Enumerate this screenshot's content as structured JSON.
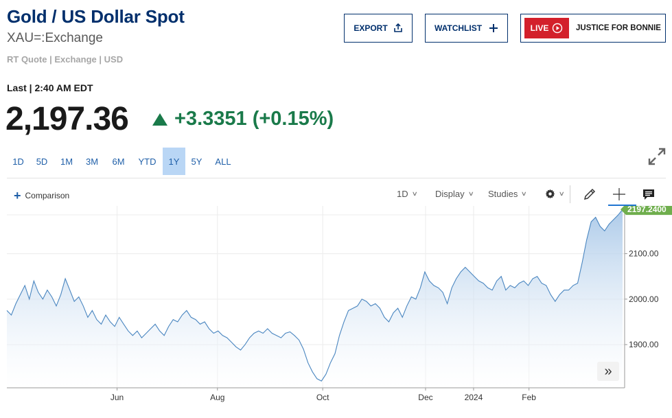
{
  "header": {
    "title": "Gold / US Dollar Spot",
    "symbol": "XAU=:Exchange",
    "quote_source": "RT Quote | Exchange | USD"
  },
  "actions": {
    "export_label": "EXPORT",
    "export_icon": "share-icon",
    "watchlist_label": "WATCHLIST",
    "watchlist_icon": "plus-icon",
    "live_badge": "LIVE",
    "live_icon": "play-circle-icon",
    "live_label": "JUSTICE FOR BONNIE"
  },
  "quote": {
    "last_label": "Last | 2:40 AM EDT",
    "price": "2,197.36",
    "change": "+3.3351 (+0.15%)",
    "direction": "up",
    "change_color": "#1a7a4a"
  },
  "ranges": {
    "items": [
      "1D",
      "5D",
      "1M",
      "3M",
      "6M",
      "YTD",
      "1Y",
      "5Y",
      "ALL"
    ],
    "active": "1Y"
  },
  "toolbar": {
    "comparison_label": "Comparison",
    "interval_label": "1D",
    "display_label": "Display",
    "studies_label": "Studies",
    "settings_icon": "gear-icon",
    "draw_icon": "pencil-icon",
    "crosshair_icon": "crosshair-icon",
    "comments_icon": "comment-icon",
    "expand_icon": "expand-icon",
    "scroll_icon": "double-chevron-right-icon"
  },
  "chart_data": {
    "type": "area",
    "title": "",
    "xlabel": "",
    "ylabel": "",
    "x_ticks": [
      "Jun",
      "Aug",
      "Oct",
      "Dec",
      "2024",
      "Feb"
    ],
    "y_ticks": [
      1900.0,
      2000.0,
      2100.0
    ],
    "y_tick_labels": [
      "1900.00",
      "2000.00",
      "2100.00"
    ],
    "ylim": [
      1805,
      2205
    ],
    "last_value_label": "2197.2400",
    "last_value": 2197.24,
    "line_color": "#4a86c0",
    "fill_color": "#b3cfea",
    "tag_color": "#6fae4d",
    "grid": true,
    "series": [
      {
        "values": [
          1975,
          1965,
          1990,
          2010,
          2030,
          2000,
          2040,
          2015,
          2000,
          2020,
          2005,
          1985,
          2010,
          2045,
          2020,
          1995,
          2005,
          1985,
          1960,
          1975,
          1955,
          1945,
          1965,
          1950,
          1940,
          1960,
          1945,
          1930,
          1920,
          1930,
          1915,
          1925,
          1935,
          1945,
          1930,
          1920,
          1940,
          1955,
          1950,
          1965,
          1975,
          1960,
          1955,
          1945,
          1950,
          1935,
          1925,
          1930,
          1920,
          1915,
          1905,
          1895,
          1888,
          1900,
          1915,
          1925,
          1930,
          1925,
          1935,
          1925,
          1920,
          1915,
          1925,
          1928,
          1920,
          1910,
          1890,
          1860,
          1840,
          1825,
          1820,
          1835,
          1860,
          1880,
          1920,
          1950,
          1975,
          1980,
          1985,
          2000,
          1995,
          1985,
          1990,
          1980,
          1960,
          1950,
          1970,
          1980,
          1960,
          1985,
          2005,
          2000,
          2025,
          2060,
          2040,
          2030,
          2025,
          2015,
          1990,
          2025,
          2045,
          2060,
          2070,
          2060,
          2050,
          2040,
          2035,
          2025,
          2020,
          2040,
          2050,
          2020,
          2030,
          2025,
          2035,
          2040,
          2030,
          2045,
          2050,
          2035,
          2030,
          2010,
          1995,
          2010,
          2020,
          2020,
          2030,
          2035,
          2080,
          2130,
          2170,
          2180,
          2160,
          2150,
          2165,
          2175,
          2185,
          2197.24
        ]
      }
    ]
  }
}
